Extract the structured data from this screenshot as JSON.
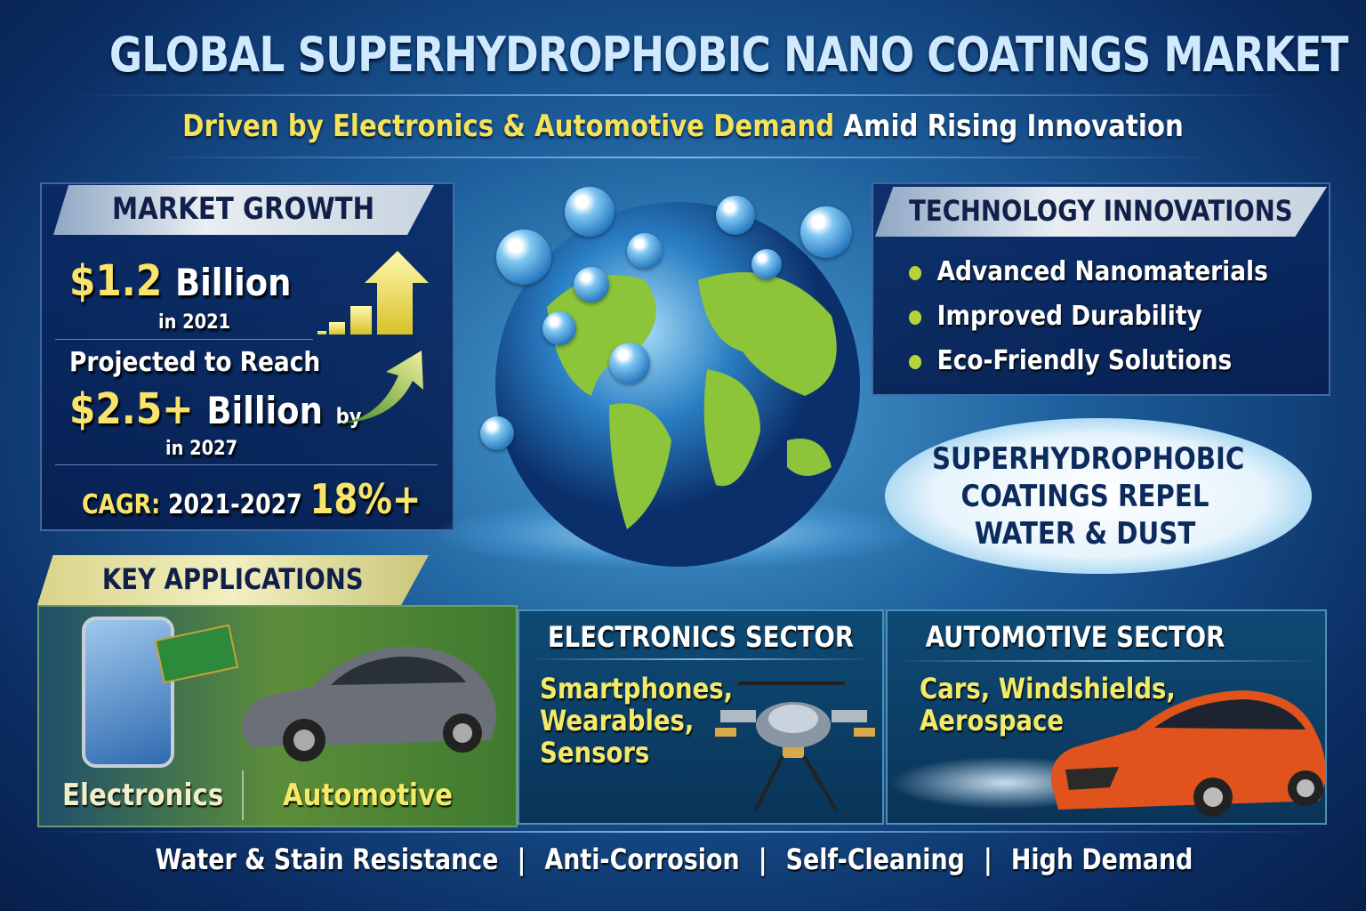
{
  "header": {
    "title": "GLOBAL SUPERHYDROPHOBIC NANO COATINGS MARKET",
    "subtitle_highlight": "Driven by Electronics & Automotive Demand",
    "subtitle_rest": "Amid Rising Innovation"
  },
  "market_growth": {
    "heading": "MARKET GROWTH",
    "value_2021": "$1.2",
    "value_2021_unit": "Billion",
    "year_2021": "in 2021",
    "projected_label": "Projected to Reach",
    "value_2027": "$2.5+",
    "value_2027_unit": "Billion",
    "value_2027_suffix": "by",
    "year_2027": "in 2027",
    "cagr_label": "CAGR:",
    "cagr_period": "2021-2027",
    "cagr_value": "18%+"
  },
  "technology": {
    "heading": "TECHNOLOGY INNOVATIONS",
    "items": [
      "Advanced Nanomaterials",
      "Improved Durability",
      "Eco-Friendly Solutions"
    ]
  },
  "callout": {
    "lines": [
      "SUPERHYDROPHOBIC",
      "COATINGS REPEL",
      "WATER & DUST"
    ]
  },
  "key_applications": {
    "heading": "KEY APPLICATIONS",
    "items": [
      "Electronics",
      "Automotive"
    ]
  },
  "electronics_sector": {
    "heading": "ELECTRONICS SECTOR",
    "items": [
      "Smartphones,",
      "Wearables,",
      "Sensors"
    ]
  },
  "automotive_sector": {
    "heading": "AUTOMOTIVE SECTOR",
    "items": [
      "Cars, Windshields,",
      "Aerospace"
    ]
  },
  "footer": {
    "items": [
      "Water & Stain Resistance",
      "Anti-Corrosion",
      "Self-Cleaning",
      "High Demand"
    ],
    "separator": "|"
  },
  "colors": {
    "accent_yellow": "#f4e25a",
    "navy": "#0b2d63",
    "car_orange": "#e0531c",
    "globe_green": "#8cc43a"
  }
}
